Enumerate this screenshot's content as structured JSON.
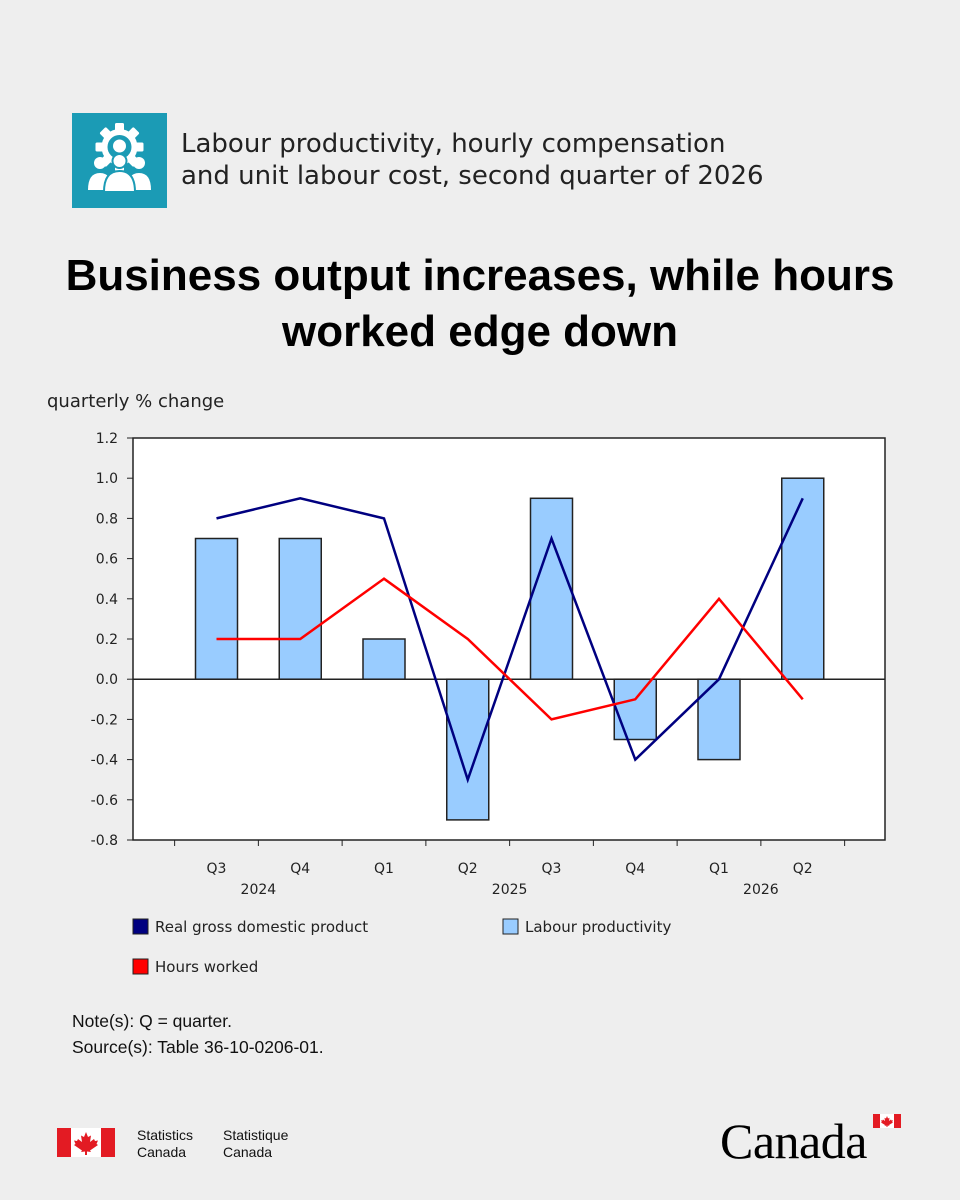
{
  "header": {
    "subtitle_line1": "Labour productivity, hourly compensation",
    "subtitle_line2": "and unit labour cost, second quarter of 2026",
    "icon": "gear-with-people-icon",
    "icon_color": "#1b9bb5"
  },
  "headline": {
    "line1": "Business output increases, while hours",
    "line2": "worked edge down"
  },
  "chart_data": {
    "type": "bar",
    "ylabel": "quarterly % change",
    "ylim": [
      -0.8,
      1.2
    ],
    "yticks": [
      "1.2",
      "1.0",
      "0.8",
      "0.6",
      "0.4",
      "0.2",
      "0.0",
      "-0.2",
      "-0.4",
      "-0.6",
      "-0.8"
    ],
    "categories": [
      "Q3",
      "Q4",
      "Q1",
      "Q2",
      "Q3",
      "Q4",
      "Q1",
      "Q2"
    ],
    "year_labels": [
      "2024",
      "2025",
      "2026"
    ],
    "grid": false,
    "legend_position": "bottom",
    "series": [
      {
        "name": "Real gross domestic product",
        "type": "line",
        "color": "#000080",
        "values": [
          0.8,
          0.9,
          0.8,
          -0.5,
          0.7,
          -0.4,
          0.0,
          0.9
        ]
      },
      {
        "name": "Labour productivity",
        "type": "bar",
        "color": "#99ccff",
        "values": [
          0.7,
          0.7,
          0.2,
          -0.7,
          0.9,
          -0.3,
          -0.4,
          1.0
        ]
      },
      {
        "name": "Hours worked",
        "type": "line",
        "color": "#ff0000",
        "values": [
          0.2,
          0.2,
          0.5,
          0.2,
          -0.2,
          -0.1,
          0.4,
          -0.1
        ]
      }
    ]
  },
  "notes": {
    "note": "Note(s): Q = quarter.",
    "source": "Source(s): Table 36-10-0206-01."
  },
  "footer": {
    "agency_en_line1": "Statistics",
    "agency_en_line2": "Canada",
    "agency_fr_line1": "Statistique",
    "agency_fr_line2": "Canada",
    "wordmark": "Canada",
    "flag_color": "#e31b23"
  }
}
